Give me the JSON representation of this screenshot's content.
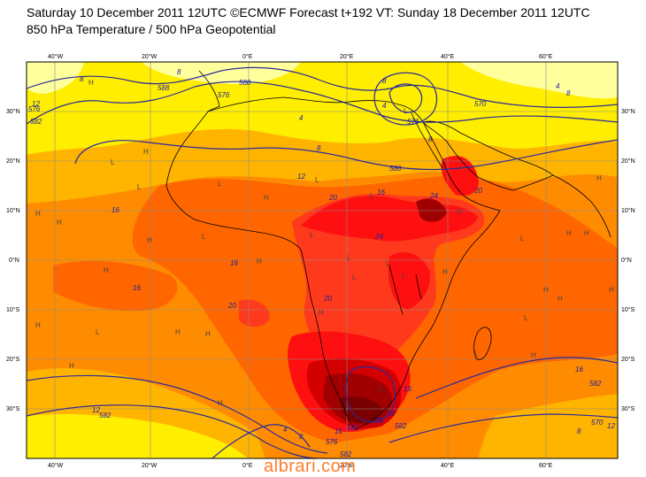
{
  "header": {
    "title_line1": "Saturday 10 December 2011 12UTC ©ECMWF Forecast t+192 VT: Sunday 18 December 2011 12UTC",
    "title_line2": "850 hPa Temperature / 500 hPa Geopotential"
  },
  "axes": {
    "lon_top": [
      "40°W",
      "20°W",
      "0°E",
      "20°E",
      "40°E",
      "60°E"
    ],
    "lon_bottom": [
      "40°W",
      "20°W",
      "0°E",
      "20°E",
      "40°E",
      "60°E"
    ],
    "lat_left": [
      "30°N",
      "20°N",
      "10°N",
      "0°N",
      "10°S",
      "20°S",
      "30°S"
    ],
    "lat_right": [
      "30°N",
      "20°N",
      "10°N",
      "0°N",
      "10°S",
      "20°S",
      "30°S"
    ]
  },
  "colors": {
    "pale": "#ffff9c",
    "yellow": "#ffee00",
    "gold": "#ffb400",
    "orange": "#ff8c00",
    "deep_orange": "#ff6600",
    "red_orange": "#ff3a1c",
    "red": "#ff1010",
    "crimson": "#d40000",
    "maroon": "#a00000",
    "dark_maroon": "#7a0000",
    "contour": "#2b2b9a",
    "coast": "#000000",
    "grid": "#8a8a8a"
  },
  "temperature_labels": [
    {
      "text": "8"
    },
    {
      "text": "8"
    },
    {
      "text": "4"
    },
    {
      "text": "8"
    },
    {
      "text": "4"
    },
    {
      "text": "4"
    },
    {
      "text": "8"
    },
    {
      "text": "12"
    },
    {
      "text": "20"
    },
    {
      "text": "16"
    },
    {
      "text": "24"
    },
    {
      "text": "20"
    },
    {
      "text": "24"
    },
    {
      "text": "16"
    },
    {
      "text": "16"
    },
    {
      "text": "16"
    },
    {
      "text": "20"
    },
    {
      "text": "20"
    },
    {
      "text": "16"
    },
    {
      "text": "16"
    },
    {
      "text": "24"
    },
    {
      "text": "28"
    },
    {
      "text": "16"
    },
    {
      "text": "12"
    },
    {
      "text": "8"
    },
    {
      "text": "4"
    },
    {
      "text": "12"
    },
    {
      "text": "12"
    },
    {
      "text": "8"
    },
    {
      "text": "8"
    },
    {
      "text": "8"
    }
  ],
  "geopotential_labels": [
    {
      "text": "582"
    },
    {
      "text": "588"
    },
    {
      "text": "576"
    },
    {
      "text": "588"
    },
    {
      "text": "576"
    },
    {
      "text": "570"
    },
    {
      "text": "588"
    },
    {
      "text": "582"
    },
    {
      "text": "582"
    },
    {
      "text": "582"
    },
    {
      "text": "582"
    },
    {
      "text": "576"
    },
    {
      "text": "570"
    },
    {
      "text": "576"
    },
    {
      "text": "582"
    }
  ],
  "pressure_centers": [
    {
      "text": "H"
    },
    {
      "text": "L"
    },
    {
      "text": "L"
    },
    {
      "text": "H"
    },
    {
      "text": "L"
    },
    {
      "text": "H"
    },
    {
      "text": "L"
    },
    {
      "text": "H"
    },
    {
      "text": "H"
    },
    {
      "text": "L"
    },
    {
      "text": "H"
    },
    {
      "text": "L"
    },
    {
      "text": "H"
    },
    {
      "text": "L"
    },
    {
      "text": "L"
    },
    {
      "text": "H"
    },
    {
      "text": "H"
    },
    {
      "text": "H"
    },
    {
      "text": "L"
    },
    {
      "text": "L"
    },
    {
      "text": "H"
    },
    {
      "text": "H"
    },
    {
      "text": "H"
    },
    {
      "text": "L"
    },
    {
      "text": "H"
    },
    {
      "text": "H"
    },
    {
      "text": "H"
    },
    {
      "text": "H"
    },
    {
      "text": "L"
    },
    {
      "text": "H"
    },
    {
      "text": "H"
    },
    {
      "text": "L"
    },
    {
      "text": "L"
    },
    {
      "text": "L"
    },
    {
      "text": "H"
    },
    {
      "text": "H"
    },
    {
      "text": "H"
    },
    {
      "text": "L"
    },
    {
      "text": "H"
    },
    {
      "text": "L"
    }
  ],
  "watermark": "albrari.com"
}
